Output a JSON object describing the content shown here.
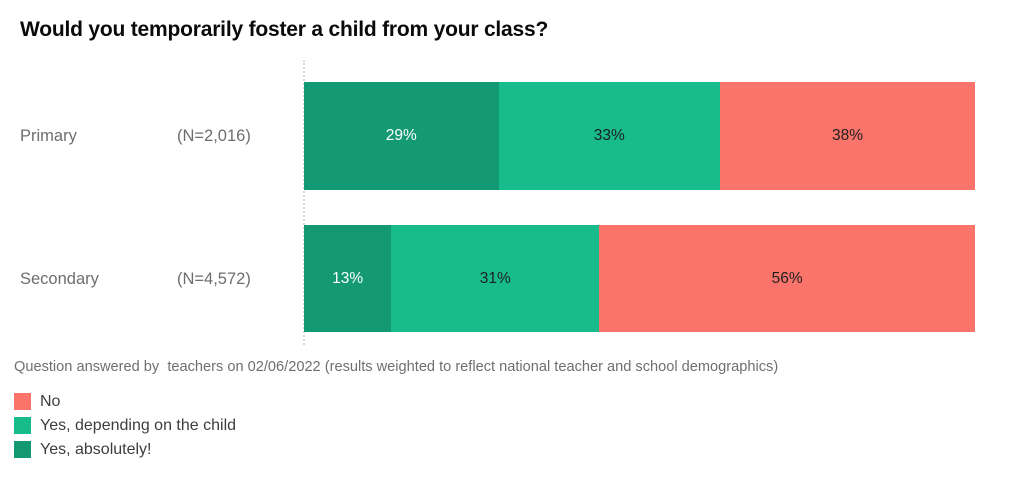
{
  "title": "Would you temporarily foster a child from your class?",
  "footnote": "Question answered by  teachers on 02/06/2022 (results weighted to reflect national teacher and school demographics)",
  "legend": [
    {
      "label": "No",
      "color": "#fa746b"
    },
    {
      "label": "Yes, depending on the child",
      "color": "#17bb8c"
    },
    {
      "label": "Yes, absolutely!",
      "color": "#139a74"
    }
  ],
  "chart_data": {
    "type": "bar",
    "orientation": "horizontal",
    "stacked": true,
    "categories": [
      "Primary",
      "Secondary"
    ],
    "sample_sizes": [
      "(N=2,016)",
      "(N=4,572)"
    ],
    "series": [
      {
        "name": "Yes, absolutely!",
        "values": [
          29,
          13
        ],
        "color": "#139a74",
        "label_color": "#ffffff"
      },
      {
        "name": "Yes, depending on the child",
        "values": [
          33,
          31
        ],
        "color": "#17bb8c",
        "label_color": "#1f1f1f"
      },
      {
        "name": "No",
        "values": [
          38,
          56
        ],
        "color": "#fa746b",
        "label_color": "#1f1f1f"
      }
    ],
    "value_suffix": "%",
    "xlim": [
      0,
      100
    ],
    "grid": false,
    "legend_position": "bottom-left"
  }
}
